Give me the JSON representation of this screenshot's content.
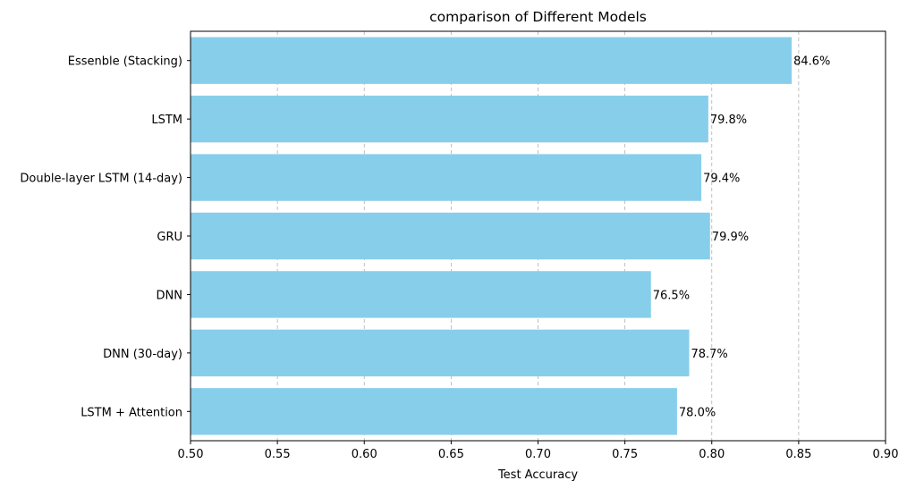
{
  "chart_data": {
    "type": "bar",
    "orientation": "horizontal",
    "title": "comparison of Different Models",
    "xlabel": "Test Accuracy",
    "ylabel": "",
    "xlim": [
      0.5,
      0.9
    ],
    "x_ticks": [
      "0.50",
      "0.55",
      "0.60",
      "0.65",
      "0.70",
      "0.75",
      "0.80",
      "0.85",
      "0.90"
    ],
    "categories": [
      "Essenble (Stacking)",
      "LSTM",
      "Double-layer LSTM (14-day)",
      "GRU",
      "DNN",
      "DNN (30-day)",
      "LSTM + Attention"
    ],
    "values": [
      0.846,
      0.798,
      0.794,
      0.799,
      0.765,
      0.787,
      0.78
    ],
    "data_labels": [
      "84.6%",
      "79.8%",
      "79.4%",
      "79.9%",
      "76.5%",
      "78.7%",
      "78.0%"
    ],
    "bar_color": "#87ceeb",
    "grid": "x, dashed",
    "legend": "none"
  }
}
